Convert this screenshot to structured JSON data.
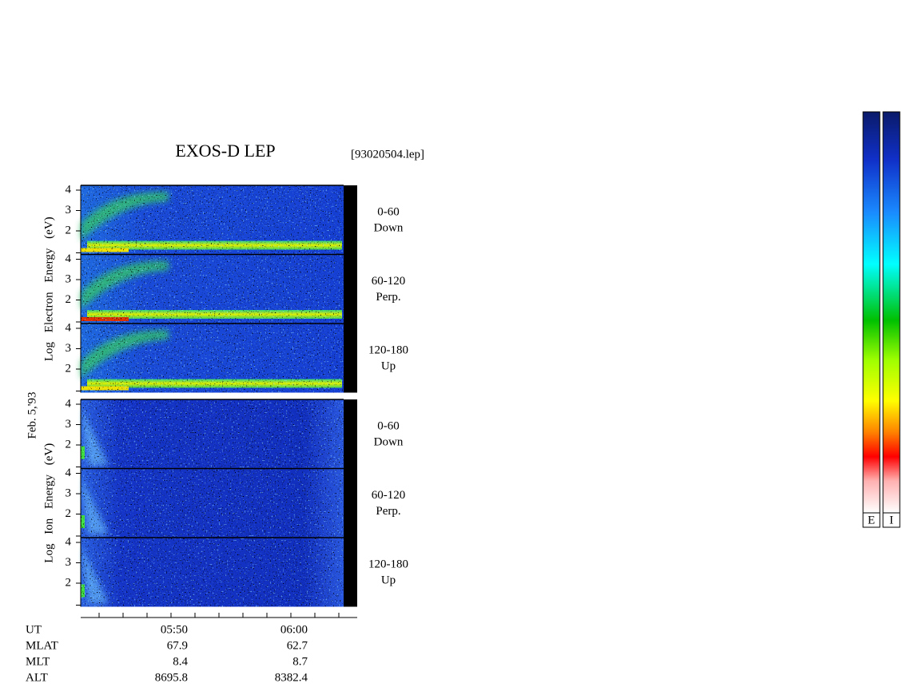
{
  "title": "EXOS-D LEP",
  "file": "[93020504.lep]",
  "date": "Feb. 5,'93",
  "energy_ticks": [
    4,
    3,
    2
  ],
  "groups": [
    {
      "axis_label": "Log Electron Energy (eV)",
      "panels": [
        {
          "range": "0-60",
          "direction": "Down"
        },
        {
          "range": "60-120",
          "direction": "Perp."
        },
        {
          "range": "120-180",
          "direction": "Up"
        }
      ]
    },
    {
      "axis_label": "Log Ion Energy (eV)",
      "panels": [
        {
          "range": "0-60",
          "direction": "Down"
        },
        {
          "range": "60-120",
          "direction": "Perp."
        },
        {
          "range": "120-180",
          "direction": "Up"
        }
      ]
    }
  ],
  "time_rows": [
    {
      "name": "UT",
      "values": [
        "05:50",
        "06:00"
      ]
    },
    {
      "name": "MLAT",
      "values": [
        67.9,
        62.7
      ]
    },
    {
      "name": "MLT",
      "values": [
        8.4,
        8.7
      ]
    },
    {
      "name": "ALT",
      "values": [
        8695.8,
        8382.4
      ]
    }
  ],
  "colorbar_labels": [
    "E",
    "I"
  ]
}
